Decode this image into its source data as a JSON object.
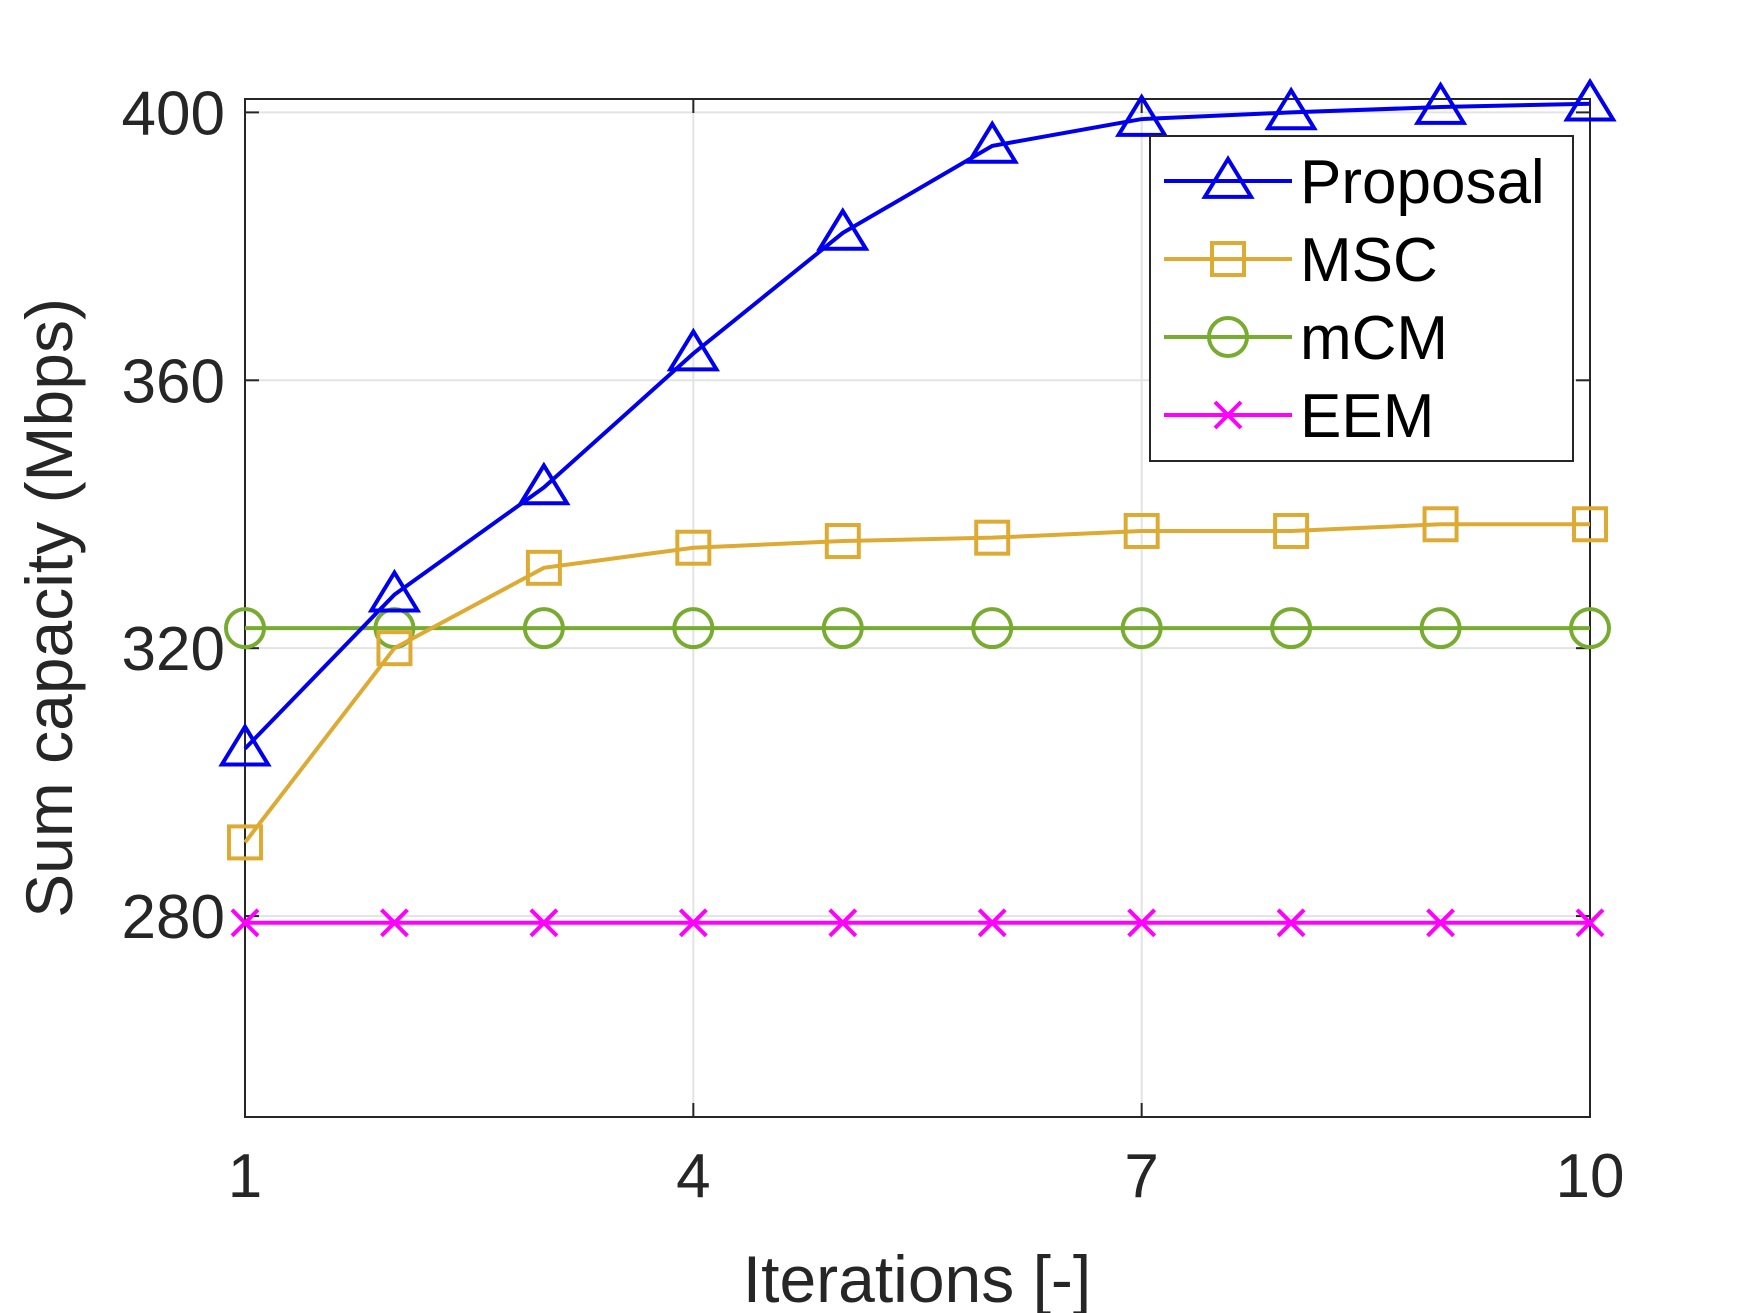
{
  "chart_data": {
    "type": "line",
    "title": "",
    "xlabel": "Iterations [-]",
    "ylabel": "Sum capacity (Mbps)",
    "xlim": [
      1,
      10
    ],
    "ylim": [
      250,
      402
    ],
    "xticks": [
      1,
      4,
      7,
      10
    ],
    "yticks": [
      280,
      320,
      360,
      400
    ],
    "xtick_labels": [
      "1",
      "4",
      "7",
      "10"
    ],
    "ytick_labels": [
      "280",
      "320",
      "360",
      "400"
    ],
    "grid": true,
    "legend_position": "top-right",
    "x": [
      1,
      2,
      3,
      4,
      5,
      6,
      7,
      8,
      9,
      10
    ],
    "series": [
      {
        "name": "Proposal",
        "color": "#0000ee",
        "marker": "triangle",
        "values": [
          305,
          328,
          344,
          364,
          382,
          395,
          399,
          400,
          400.8,
          401.3
        ]
      },
      {
        "name": "MSC",
        "color": "#ddaa33",
        "marker": "square",
        "values": [
          291,
          320,
          332,
          335,
          336,
          336.5,
          337.5,
          337.5,
          338.5,
          338.5
        ]
      },
      {
        "name": "mCM",
        "color": "#77ac30",
        "marker": "circle",
        "values": [
          323,
          323,
          323,
          323,
          323,
          323,
          323,
          323,
          323,
          323
        ]
      },
      {
        "name": "EEM",
        "color": "#ff00ff",
        "marker": "x",
        "values": [
          279,
          279,
          279,
          279,
          279,
          279,
          279,
          279,
          279,
          279
        ]
      }
    ]
  }
}
